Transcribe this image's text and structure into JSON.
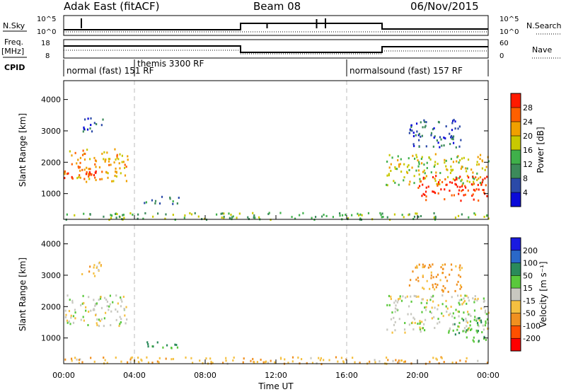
{
  "header": {
    "station": "Adak East (fitACF)",
    "beam": "Beam 08",
    "date": "06/Nov/2015"
  },
  "nsky_panel": {
    "left_label": "N.Sky",
    "right_label": "N.Search",
    "right_legend_line": "dotted",
    "tick_top": "10^5",
    "tick_bottom": "10^0",
    "right_tick_top": "10^5",
    "right_tick_bottom": "10^0"
  },
  "freq_panel": {
    "left_label_line1": "Freq.",
    "left_label_line2": "[MHz]",
    "right_label": "Nave",
    "right_legend_line": "dotted",
    "left_tick_top": "18",
    "left_tick_bottom": "8",
    "right_tick_top": "60",
    "right_tick_bottom": "0"
  },
  "cpid": {
    "label": "CPID",
    "segments": [
      {
        "label": "normal (fast) 151 RF",
        "start_hour": 0
      },
      {
        "label": "themis 3300 RF",
        "start_hour": 4
      },
      {
        "label": "normalsound (fast) 157 RF",
        "start_hour": 16
      }
    ]
  },
  "chart_data": [
    {
      "type": "heatmap",
      "name": "power",
      "ylabel": "Slant Range [km]",
      "ylim": [
        180,
        4600
      ],
      "yticks": [
        "1000",
        "2000",
        "3000",
        "4000"
      ],
      "colorbar_label": "Power [dB]",
      "colorbar_ticks": [
        "4",
        "8",
        "12",
        "16",
        "20",
        "24",
        "28"
      ],
      "colorbar_range": [
        0,
        32
      ],
      "colors": [
        "#0a0ad8",
        "#2b4aa8",
        "#3c8a5a",
        "#3fb04a",
        "#c8c800",
        "#f0a000",
        "#ff6000",
        "#ff1a00"
      ],
      "regions": [
        {
          "t0": 0.0,
          "t1": 3.6,
          "r0": 1400,
          "r1": 2450,
          "power": 22
        },
        {
          "t0": 0.0,
          "t1": 1.8,
          "r0": 1500,
          "r1": 1800,
          "power": 29
        },
        {
          "t0": 1.0,
          "t1": 2.2,
          "r0": 3000,
          "r1": 3500,
          "power": 6
        },
        {
          "t0": 4.5,
          "t1": 6.6,
          "r0": 700,
          "r1": 950,
          "power": 10
        },
        {
          "t0": 18.2,
          "t1": 24.0,
          "r0": 1300,
          "r1": 2300,
          "power": 18
        },
        {
          "t0": 20.0,
          "t1": 24.0,
          "r0": 800,
          "r1": 1600,
          "power": 30
        },
        {
          "t0": 19.5,
          "t1": 22.5,
          "r0": 2500,
          "r1": 3400,
          "power": 7
        },
        {
          "t0": 0.0,
          "t1": 24.0,
          "r0": 200,
          "r1": 420,
          "power": 14
        }
      ]
    },
    {
      "type": "heatmap",
      "name": "velocity",
      "ylabel": "Slant Range [km]",
      "ylim": [
        180,
        4600
      ],
      "yticks": [
        "1000",
        "2000",
        "3000",
        "4000"
      ],
      "colorbar_label": "Velocity [m s⁻¹]",
      "colorbar_ticks": [
        "200",
        "100",
        "50",
        "15",
        "-15",
        "-50",
        "-100",
        "-200"
      ],
      "colors": [
        "#1a1ae0",
        "#2a68c8",
        "#2a8a5a",
        "#5ac83c",
        "#c8c8c0",
        "#f5c040",
        "#f09020",
        "#ff5000",
        "#ff0000"
      ],
      "regions": [
        {
          "t0": 0.0,
          "t1": 3.6,
          "r0": 1400,
          "r1": 2400,
          "vel": 0
        },
        {
          "t0": 1.0,
          "t1": 2.2,
          "r0": 3000,
          "r1": 3500,
          "vel": -30
        },
        {
          "t0": 4.5,
          "t1": 6.6,
          "r0": 700,
          "r1": 950,
          "vel": 60
        },
        {
          "t0": 18.2,
          "t1": 24.0,
          "r0": 1200,
          "r1": 2400,
          "vel": 0
        },
        {
          "t0": 22.0,
          "t1": 24.0,
          "r0": 900,
          "r1": 1700,
          "vel": 40
        },
        {
          "t0": 19.5,
          "t1": 22.5,
          "r0": 2500,
          "r1": 3400,
          "vel": -60
        },
        {
          "t0": 0.0,
          "t1": 24.0,
          "r0": 200,
          "r1": 420,
          "vel": -40
        }
      ]
    }
  ],
  "x_axis": {
    "label": "Time UT",
    "ticks": [
      "00:00",
      "04:00",
      "08:00",
      "12:00",
      "16:00",
      "20:00",
      "00:00"
    ],
    "range_hours": [
      0,
      24
    ]
  }
}
